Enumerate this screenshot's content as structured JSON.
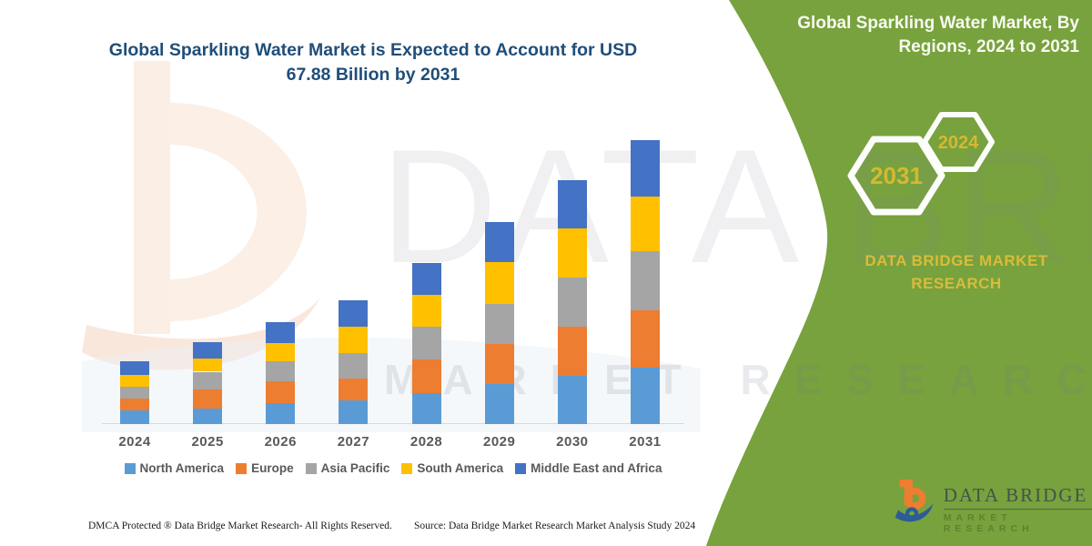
{
  "page": {
    "background": "#ffffff",
    "accent_green": "#77A23D",
    "title_blue": "#1F4E79",
    "gold": "#D6B832"
  },
  "chart_title": "Global Sparkling Water Market is Expected to Account for USD 67.88 Billion by 2031",
  "panel": {
    "title": "Global Sparkling Water Market, By Regions, 2024 to 2031",
    "hexagons": [
      {
        "label": "2031"
      },
      {
        "label": "2024"
      }
    ],
    "brand_caption": "DATA BRIDGE MARKET RESEARCH",
    "corner_logo": {
      "brand": "DATA BRIDGE",
      "sub": "MARKET RESEARCH",
      "mark_orange": "#ED7D31",
      "mark_blue": "#2F5B97"
    }
  },
  "watermark": {
    "text_top": "DATA BRIDGE",
    "text_bottom": "MARKET RESEARCH"
  },
  "footer": {
    "left": "DMCA Protected ® Data Bridge Market Research-  All Rights Reserved.",
    "right": "Source: Data Bridge Market Research  Market Analysis Study 2024"
  },
  "chart_data": {
    "type": "bar",
    "stacked": true,
    "unit": "USD Billion",
    "title": "Global Sparkling Water Market, By Regions, 2024 to 2031",
    "categories": [
      "2024",
      "2025",
      "2026",
      "2027",
      "2028",
      "2029",
      "2030",
      "2031"
    ],
    "series": [
      {
        "name": "North America",
        "color": "#5B9BD5",
        "values": [
          3.2,
          3.6,
          5.0,
          5.6,
          7.4,
          9.5,
          11.6,
          13.4
        ]
      },
      {
        "name": "Europe",
        "color": "#ED7D31",
        "values": [
          2.9,
          4.6,
          5.2,
          5.2,
          8.1,
          9.6,
          11.6,
          13.8
        ]
      },
      {
        "name": "Asia Pacific",
        "color": "#A5A5A5",
        "values": [
          2.8,
          4.3,
          4.7,
          6.2,
          7.7,
          9.6,
          11.9,
          14.0
        ]
      },
      {
        "name": "South America",
        "color": "#FFC000",
        "values": [
          2.9,
          3.1,
          4.4,
          6.3,
          7.6,
          10.0,
          11.6,
          13.1
        ]
      },
      {
        "name": "Middle East and Africa",
        "color": "#4472C4",
        "values": [
          3.1,
          4.0,
          5.0,
          6.2,
          7.7,
          9.6,
          11.6,
          13.6
        ]
      }
    ],
    "totals_estimated": [
      14.9,
      19.6,
      24.3,
      29.5,
      38.5,
      48.3,
      58.3,
      67.9
    ],
    "ylim": [
      0,
      70
    ],
    "y_axis_labels_visible": false,
    "gridlines": false,
    "legend_position": "bottom"
  }
}
